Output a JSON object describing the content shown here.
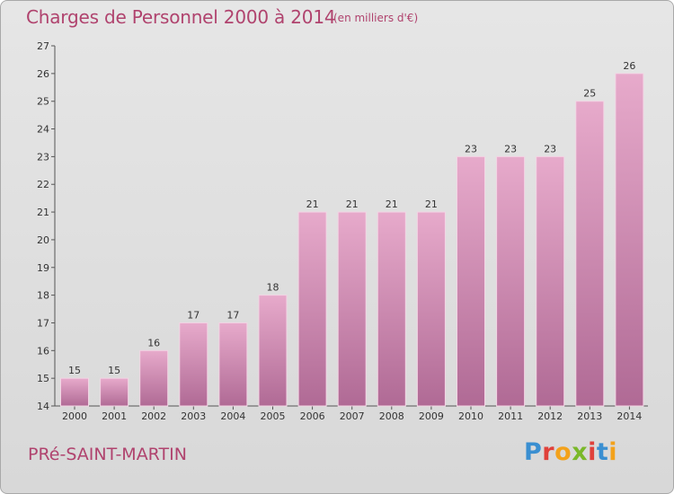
{
  "header": {
    "title": "Charges de Personnel 2000 à 2014",
    "subtitle": "(en milliers d'€)"
  },
  "footer": {
    "town": "PRé-SAINT-MARTIN",
    "logo": "Proxiti",
    "logo_colors": [
      "#3a8fd1",
      "#e0413a",
      "#f3a21b",
      "#7ab829",
      "#e0413a",
      "#3a8fd1",
      "#f3a21b"
    ]
  },
  "colors": {
    "bar_top": "#e7aacb",
    "bar_bottom": "#b06a95",
    "text": "#b0436e"
  },
  "chart_data": {
    "type": "bar",
    "title": "Charges de Personnel 2000 à 2014",
    "subtitle": "(en milliers d'€)",
    "categories": [
      "2000",
      "2001",
      "2002",
      "2003",
      "2004",
      "2005",
      "2006",
      "2007",
      "2008",
      "2009",
      "2010",
      "2011",
      "2012",
      "2013",
      "2014"
    ],
    "values": [
      15,
      15,
      16,
      17,
      17,
      18,
      21,
      21,
      21,
      21,
      23,
      23,
      23,
      25,
      26
    ],
    "ylim": [
      14,
      27
    ],
    "yticks": [
      14,
      15,
      16,
      17,
      18,
      19,
      20,
      21,
      22,
      23,
      24,
      25,
      26,
      27
    ],
    "grid": false,
    "legend": "none"
  }
}
